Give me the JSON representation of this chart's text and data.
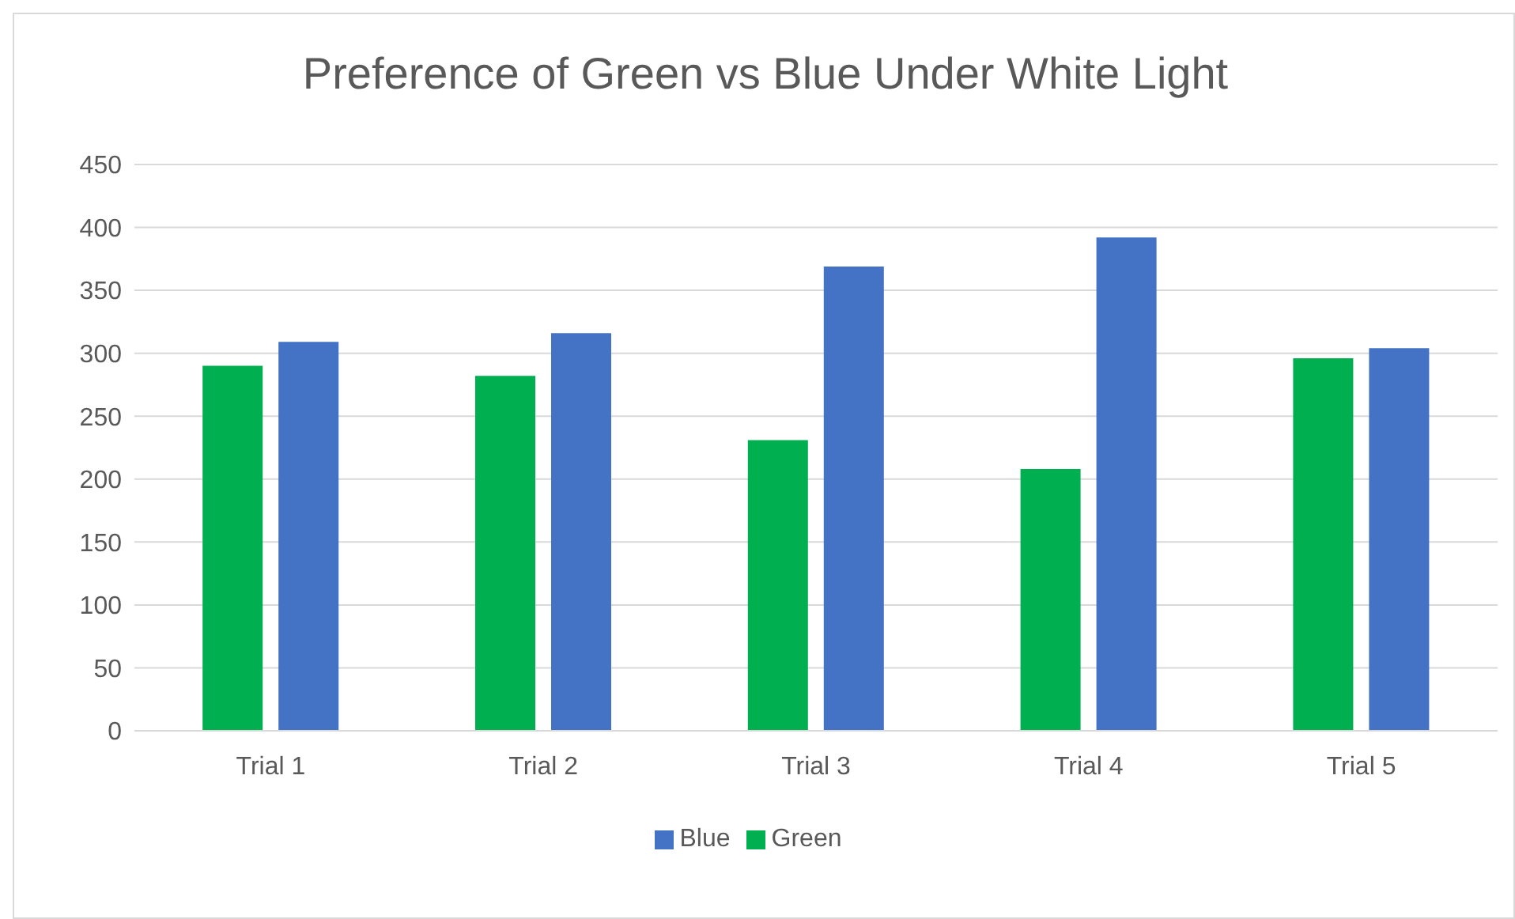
{
  "chart_data": {
    "type": "bar",
    "title": "Preference of Green vs Blue Under White Light",
    "categories": [
      "Trial 1",
      "Trial 2",
      "Trial 3",
      "Trial 4",
      "Trial 5"
    ],
    "series": [
      {
        "name": "Green",
        "color": "#00b050",
        "values": [
          290,
          282,
          231,
          208,
          296
        ]
      },
      {
        "name": "Blue",
        "color": "#4472c4",
        "values": [
          309,
          316,
          369,
          392,
          304
        ]
      }
    ],
    "ylim": [
      0,
      450
    ],
    "yticks": [
      0,
      50,
      100,
      150,
      200,
      250,
      300,
      350,
      400,
      450
    ],
    "grid": "y",
    "legend": "bottom"
  }
}
